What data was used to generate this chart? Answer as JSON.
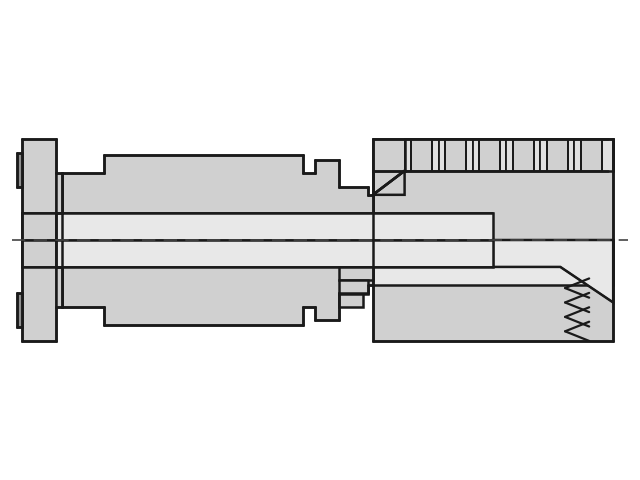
{
  "bg": "#ffffff",
  "lc": "#1a1a1a",
  "fill_body": "#d0d0d0",
  "fill_light": "#e0e0e0",
  "fill_inner": "#e8e8e8",
  "fill_slot": "#909090",
  "fill_thread_valley": "#c8c8c8",
  "fill_gradient_light": "#dedede",
  "xlim": [
    -3.3,
    3.3
  ],
  "ylim": [
    -1.55,
    1.55
  ]
}
